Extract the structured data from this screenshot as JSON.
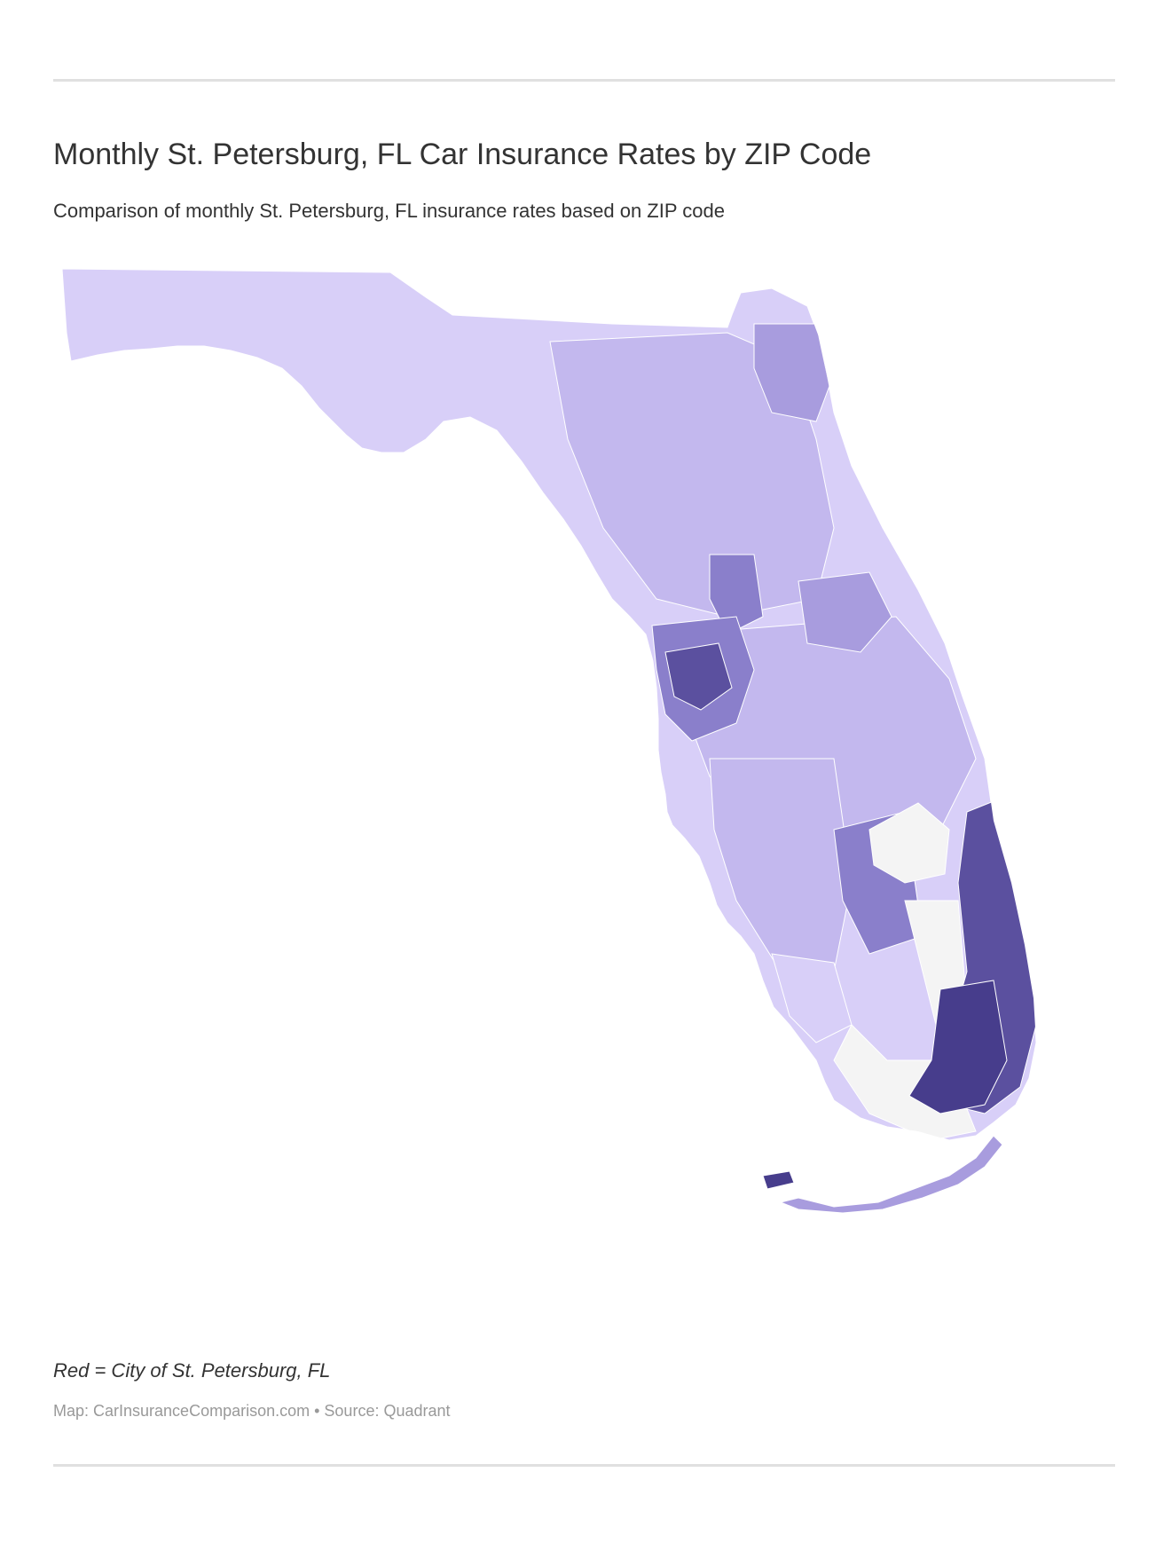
{
  "header": {
    "title": "Monthly St. Petersburg, FL Car Insurance Rates by ZIP Code",
    "subtitle": "Comparison of monthly St. Petersburg, FL insurance rates based on ZIP code"
  },
  "map": {
    "region": "Florida",
    "shading": "ZIP code",
    "palette": {
      "no_data": "#f4f4f4",
      "level_1": "#d8cff8",
      "level_2": "#c3b8ee",
      "level_3": "#a89cde",
      "level_4": "#8a7fcb",
      "level_5": "#5b509f",
      "level_6": "#473d8c",
      "boundary": "#ffffff"
    }
  },
  "footer": {
    "note": "Red = City of St. Petersburg, FL",
    "credit": "Map: CarInsuranceComparison.com • Source: Quadrant"
  }
}
